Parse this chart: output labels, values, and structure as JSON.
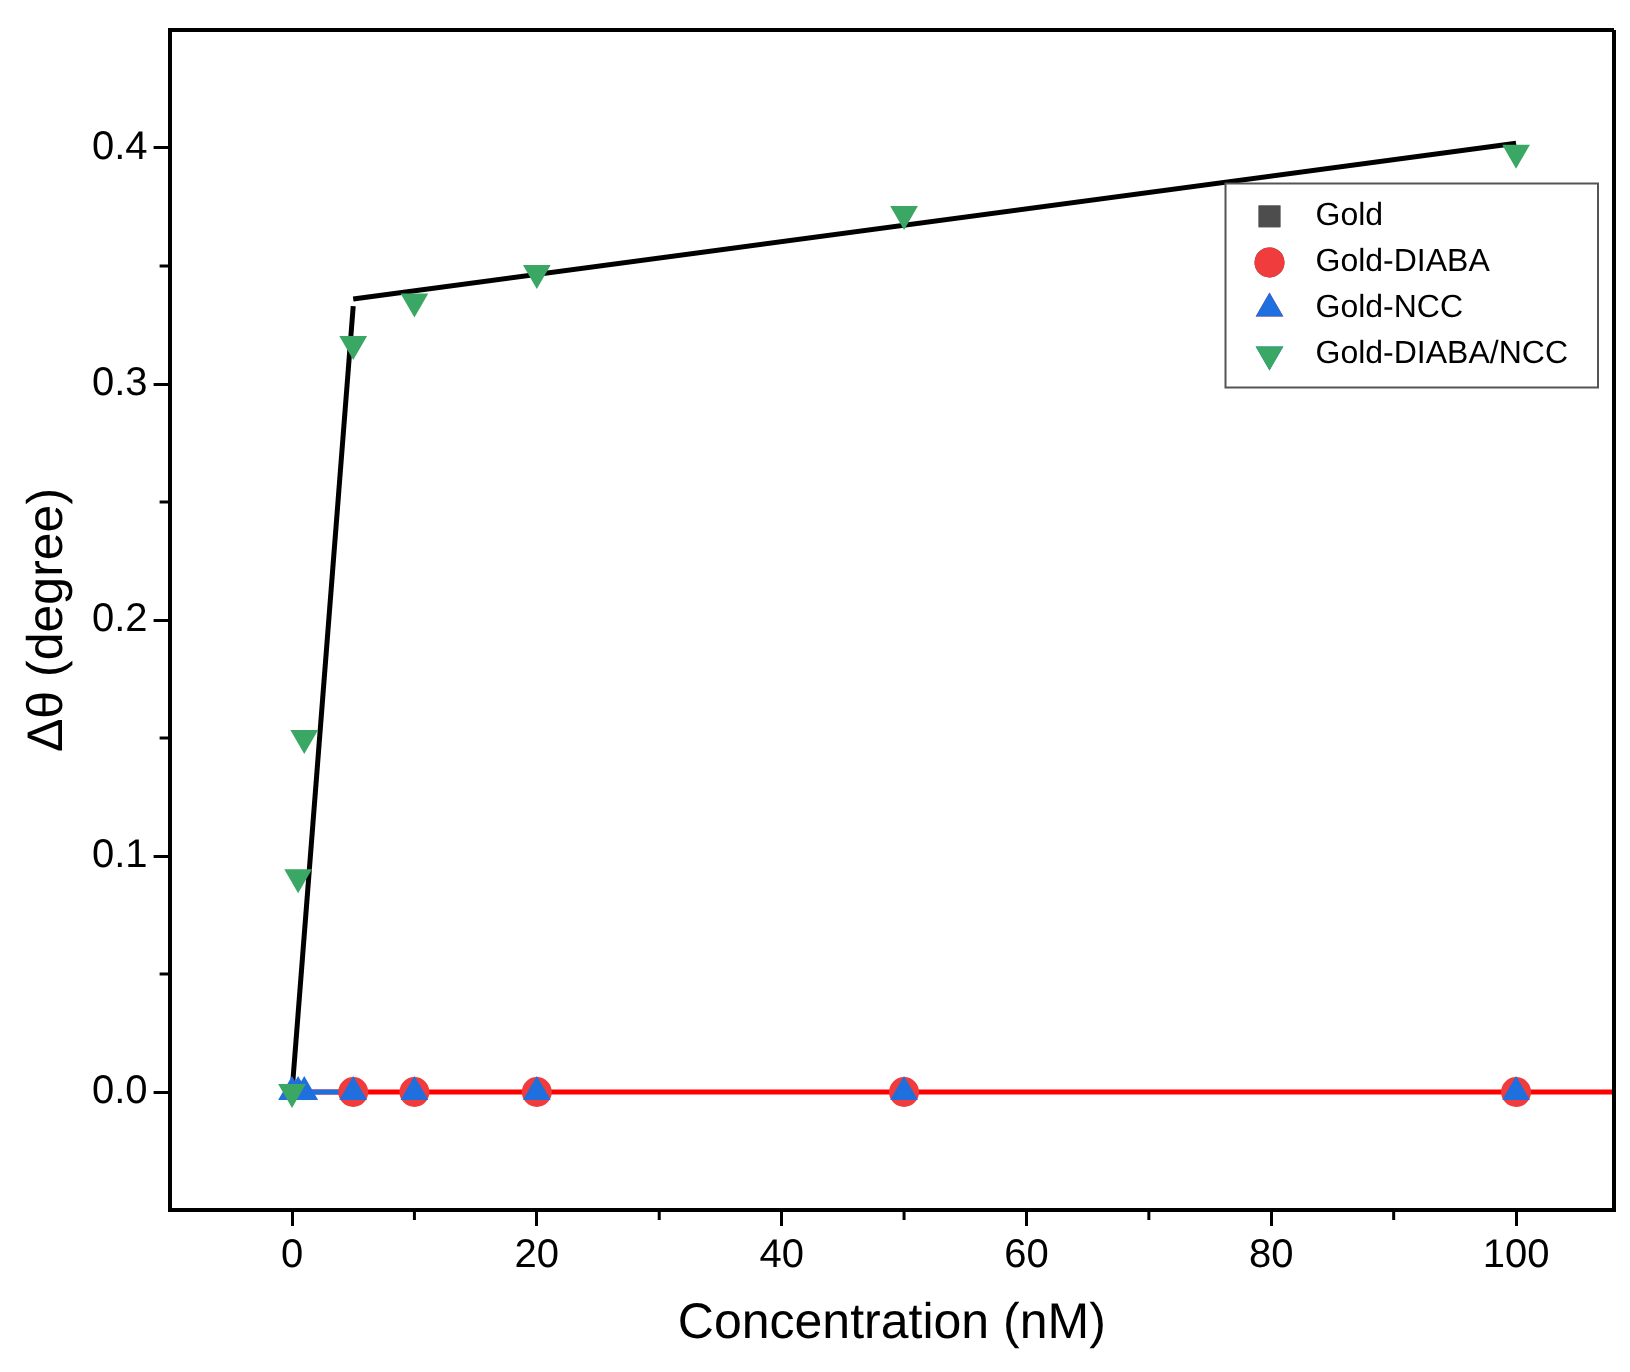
{
  "chart_data": {
    "type": "scatter",
    "xlabel": "Concentration (nM)",
    "ylabel": "Δθ (degree)",
    "xlim": [
      -10,
      108
    ],
    "ylim": [
      -0.05,
      0.45
    ],
    "xticks": [
      0,
      20,
      40,
      60,
      80,
      100
    ],
    "yticks": [
      {
        "value": 0,
        "label": "0.0"
      },
      0.1,
      0.2,
      0.3,
      0.4
    ],
    "grid": false,
    "legend": "right",
    "series": [
      {
        "name": "Gold",
        "color": "#4d4d4d",
        "marker": "square"
      },
      {
        "name": "Gold-DIABA",
        "color": "#f03c3c",
        "marker": "circle",
        "x": [
          5,
          10,
          20,
          50,
          100
        ],
        "values": [
          0,
          0,
          0,
          0,
          0
        ]
      },
      {
        "name": "Gold-NCC",
        "color": "#1f6fdf",
        "marker": "triangle",
        "x": [
          0,
          0.5,
          1,
          5,
          10,
          20,
          50,
          100
        ],
        "values": [
          0,
          0,
          0,
          0,
          0,
          0,
          0,
          0
        ]
      },
      {
        "name": "Gold-DIABA/NCC",
        "color": "#3aa864",
        "marker": "triangle",
        "x": [
          0,
          0.5,
          1,
          5,
          10,
          20,
          50,
          100
        ],
        "values": [
          0,
          0.091,
          0.15,
          0.317,
          0.335,
          0.347,
          0.372,
          0.398
        ]
      },
      {
        "type": "line",
        "color": "#ff0000",
        "marker": "none",
        "x": [
          1,
          108
        ],
        "values": [
          0,
          0
        ]
      },
      {
        "type": "line",
        "color": "#1f6fdf",
        "marker": "none",
        "x": [
          0,
          5
        ],
        "values": [
          0,
          0
        ]
      },
      {
        "type": "line",
        "color": "#000000",
        "marker": "none",
        "x": [
          0,
          5
        ],
        "values": [
          0,
          0.333
        ]
      },
      {
        "type": "line",
        "color": "#000000",
        "marker": "none",
        "x": [
          5,
          100
        ],
        "values": [
          0.336,
          0.402
        ]
      }
    ]
  }
}
